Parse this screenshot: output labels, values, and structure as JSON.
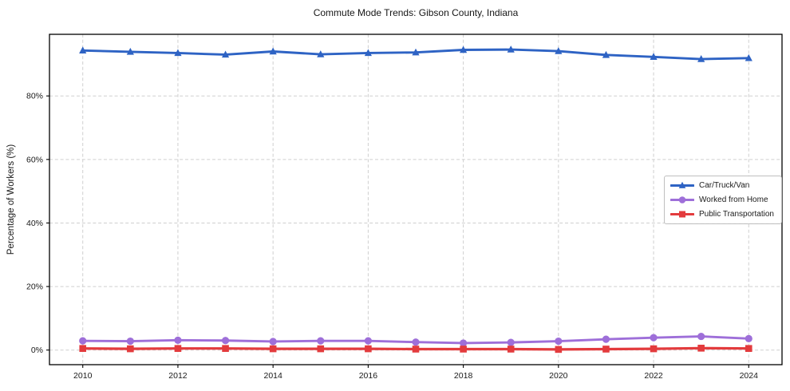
{
  "title": "Commute Mode Trends: Gibson County, Indiana",
  "axes": {
    "x": {
      "tick_labels": [
        "2010",
        "2012",
        "2014",
        "2016",
        "2018",
        "2020",
        "2022",
        "2024"
      ],
      "tick_values": [
        2010,
        2012,
        2014,
        2016,
        2018,
        2020,
        2022,
        2024
      ]
    },
    "y": {
      "label": "Percentage of Workers (%)",
      "tick_labels": [
        "0%",
        "20%",
        "40%",
        "60%",
        "80%"
      ],
      "tick_values": [
        0,
        20,
        40,
        60,
        80
      ]
    }
  },
  "colors": {
    "car_truck_van": "#2e63c4",
    "worked_from_home": "#9e6fd9",
    "public_transportation": "#e33b3d",
    "gridline": "#cfcfcf",
    "spine": "#000000",
    "text": "#191919"
  },
  "chart_data": {
    "type": "line",
    "title": "Commute Mode Trends: Gibson County, Indiana",
    "xlabel": "",
    "ylabel": "Percentage of Workers (%)",
    "x": [
      2010,
      2011,
      2012,
      2013,
      2014,
      2015,
      2016,
      2017,
      2018,
      2019,
      2020,
      2021,
      2022,
      2023,
      2024
    ],
    "xlim": [
      2009.3,
      2024.7
    ],
    "ylim": [
      -4.6,
      99.4
    ],
    "grid": true,
    "legend_position": "center right",
    "series": [
      {
        "name": "Car/Truck/Van",
        "marker": "triangle",
        "color": "#2e63c4",
        "values": [
          94.3,
          93.9,
          93.5,
          93.0,
          94.0,
          93.1,
          93.5,
          93.7,
          94.5,
          94.6,
          94.1,
          92.9,
          92.3,
          91.6,
          91.9
        ]
      },
      {
        "name": "Worked from Home",
        "marker": "circle",
        "color": "#9e6fd9",
        "values": [
          2.9,
          2.8,
          3.1,
          3.0,
          2.7,
          2.9,
          2.9,
          2.5,
          2.2,
          2.4,
          2.8,
          3.4,
          3.9,
          4.3,
          3.6
        ]
      },
      {
        "name": "Public Transportation",
        "marker": "square",
        "color": "#e33b3d",
        "values": [
          0.5,
          0.4,
          0.5,
          0.5,
          0.4,
          0.4,
          0.4,
          0.3,
          0.3,
          0.3,
          0.2,
          0.3,
          0.4,
          0.6,
          0.5
        ]
      }
    ]
  }
}
